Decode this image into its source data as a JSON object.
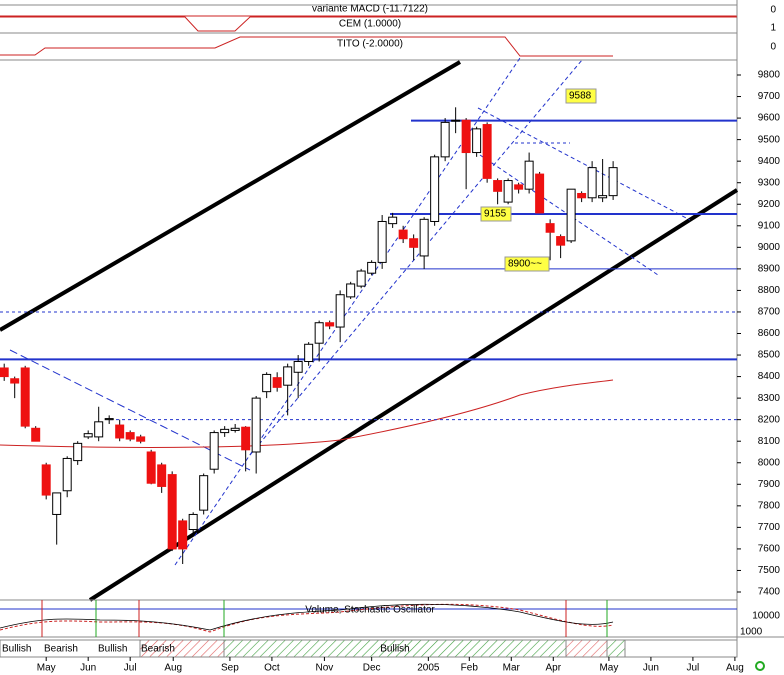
{
  "chart_data": {
    "type": "candlestick",
    "panels": {
      "macd": "variante MACD (-11.7122)",
      "cem": "CEM (1.0000)",
      "tito": "TITO (-2.0000)",
      "volume": "Volume, Stochastic Oscillator"
    },
    "panel_ticks": [
      "0",
      "1",
      "0",
      "10000",
      "1000"
    ],
    "trend_labels": [
      "Bullish",
      "Bearish",
      "Bullish",
      "Bearish",
      "Bullish"
    ],
    "x": [
      0,
      1,
      2,
      3,
      4,
      5,
      6,
      7,
      8,
      9,
      10,
      11,
      12,
      13,
      14,
      15,
      16,
      17,
      18,
      19,
      20,
      21,
      22,
      23,
      24,
      25,
      26,
      27,
      28,
      29,
      30,
      31,
      32,
      33,
      34,
      35,
      36,
      37,
      38,
      39,
      40,
      41,
      42,
      43,
      44,
      45,
      46,
      47,
      48,
      49,
      50,
      51,
      52,
      53,
      54,
      55,
      56,
      57,
      58
    ],
    "open": [
      8440,
      8390,
      8440,
      8160,
      7990,
      7760,
      7870,
      8010,
      8120,
      8120,
      8200,
      8175,
      8140,
      8120,
      8050,
      7990,
      7945,
      7730,
      7690,
      7780,
      7970,
      8140,
      8150,
      8165,
      8050,
      8330,
      8395,
      8360,
      8420,
      8470,
      8555,
      8650,
      8630,
      8770,
      8820,
      8880,
      8930,
      9110,
      9080,
      9040,
      8960,
      9120,
      9420,
      9590,
      9590,
      9440,
      9570,
      9310,
      9210,
      9290,
      9270,
      9340,
      9110,
      9050,
      9030,
      9250,
      9230,
      9230,
      9240
    ],
    "high": [
      8460,
      8400,
      8450,
      8170,
      8000,
      7860,
      8030,
      8100,
      8150,
      8260,
      8220,
      8200,
      8150,
      8130,
      8060,
      8000,
      7960,
      7740,
      7770,
      7950,
      8150,
      8170,
      8180,
      8170,
      8310,
      8420,
      8420,
      8460,
      8500,
      8560,
      8660,
      8660,
      8800,
      8840,
      8900,
      8940,
      9150,
      9160,
      9100,
      9060,
      9140,
      9430,
      9600,
      9650,
      9600,
      9560,
      9580,
      9320,
      9320,
      9300,
      9440,
      9350,
      9130,
      9060,
      9270,
      9260,
      9400,
      9410,
      9400
    ],
    "low": [
      8380,
      8300,
      8160,
      8100,
      7830,
      7620,
      7840,
      7990,
      8110,
      8100,
      8180,
      8100,
      8100,
      8090,
      7900,
      7860,
      7590,
      7530,
      7670,
      7760,
      7950,
      8120,
      8140,
      7960,
      7950,
      8300,
      8330,
      8220,
      8300,
      8450,
      8470,
      8620,
      8560,
      8760,
      8810,
      8870,
      8900,
      9090,
      9020,
      8940,
      8900,
      9100,
      9400,
      9530,
      9270,
      9420,
      9300,
      9200,
      9200,
      9250,
      9250,
      9160,
      8940,
      8950,
      9020,
      9210,
      9210,
      9210,
      9220
    ],
    "close": [
      8400,
      8370,
      8170,
      8100,
      7850,
      7860,
      8020,
      8090,
      8135,
      8190,
      8205,
      8115,
      8110,
      8100,
      7905,
      7890,
      7600,
      7600,
      7760,
      7940,
      8140,
      8155,
      8160,
      8060,
      8300,
      8410,
      8350,
      8445,
      8470,
      8550,
      8650,
      8635,
      8780,
      8830,
      8890,
      8930,
      9120,
      9140,
      9040,
      9000,
      9130,
      9420,
      9580,
      9590,
      9440,
      9550,
      9320,
      9260,
      9310,
      9270,
      9400,
      9160,
      9070,
      9010,
      9270,
      9230,
      9370,
      9240,
      9370
    ],
    "up_color": "#ffffff",
    "down_color": "#ee1111",
    "xlim": [
      -0.4,
      69.8
    ],
    "xticks": [
      {
        "value": 4,
        "label": "May"
      },
      {
        "value": 8,
        "label": "Jun"
      },
      {
        "value": 12,
        "label": "Jul"
      },
      {
        "value": 16.1,
        "label": "Aug"
      },
      {
        "value": 21.5,
        "label": "Sep"
      },
      {
        "value": 25.5,
        "label": "Oct"
      },
      {
        "value": 30.5,
        "label": "Nov"
      },
      {
        "value": 35,
        "label": "Dec"
      },
      {
        "value": 40.4,
        "label": "2005"
      },
      {
        "value": 44.3,
        "label": "Feb"
      },
      {
        "value": 48.3,
        "label": "Mar"
      },
      {
        "value": 52.3,
        "label": "Apr"
      },
      {
        "value": 57.6,
        "label": "May"
      },
      {
        "value": 61.6,
        "label": "Jun"
      },
      {
        "value": 65.6,
        "label": "Jul"
      },
      {
        "value": 69.6,
        "label": "Aug"
      }
    ],
    "ylim": [
      7400,
      9800
    ],
    "yticks": [
      7400,
      7500,
      7600,
      7700,
      7800,
      7900,
      8000,
      8100,
      8200,
      8300,
      8400,
      8500,
      8600,
      8700,
      8800,
      8900,
      9000,
      9100,
      9200,
      9300,
      9400,
      9500,
      9600,
      9700,
      9800
    ],
    "levels": [
      9588,
      9155,
      8900,
      8700,
      8480,
      8200
    ],
    "level_labels": [
      "9588",
      "9155",
      "8900~~"
    ]
  }
}
